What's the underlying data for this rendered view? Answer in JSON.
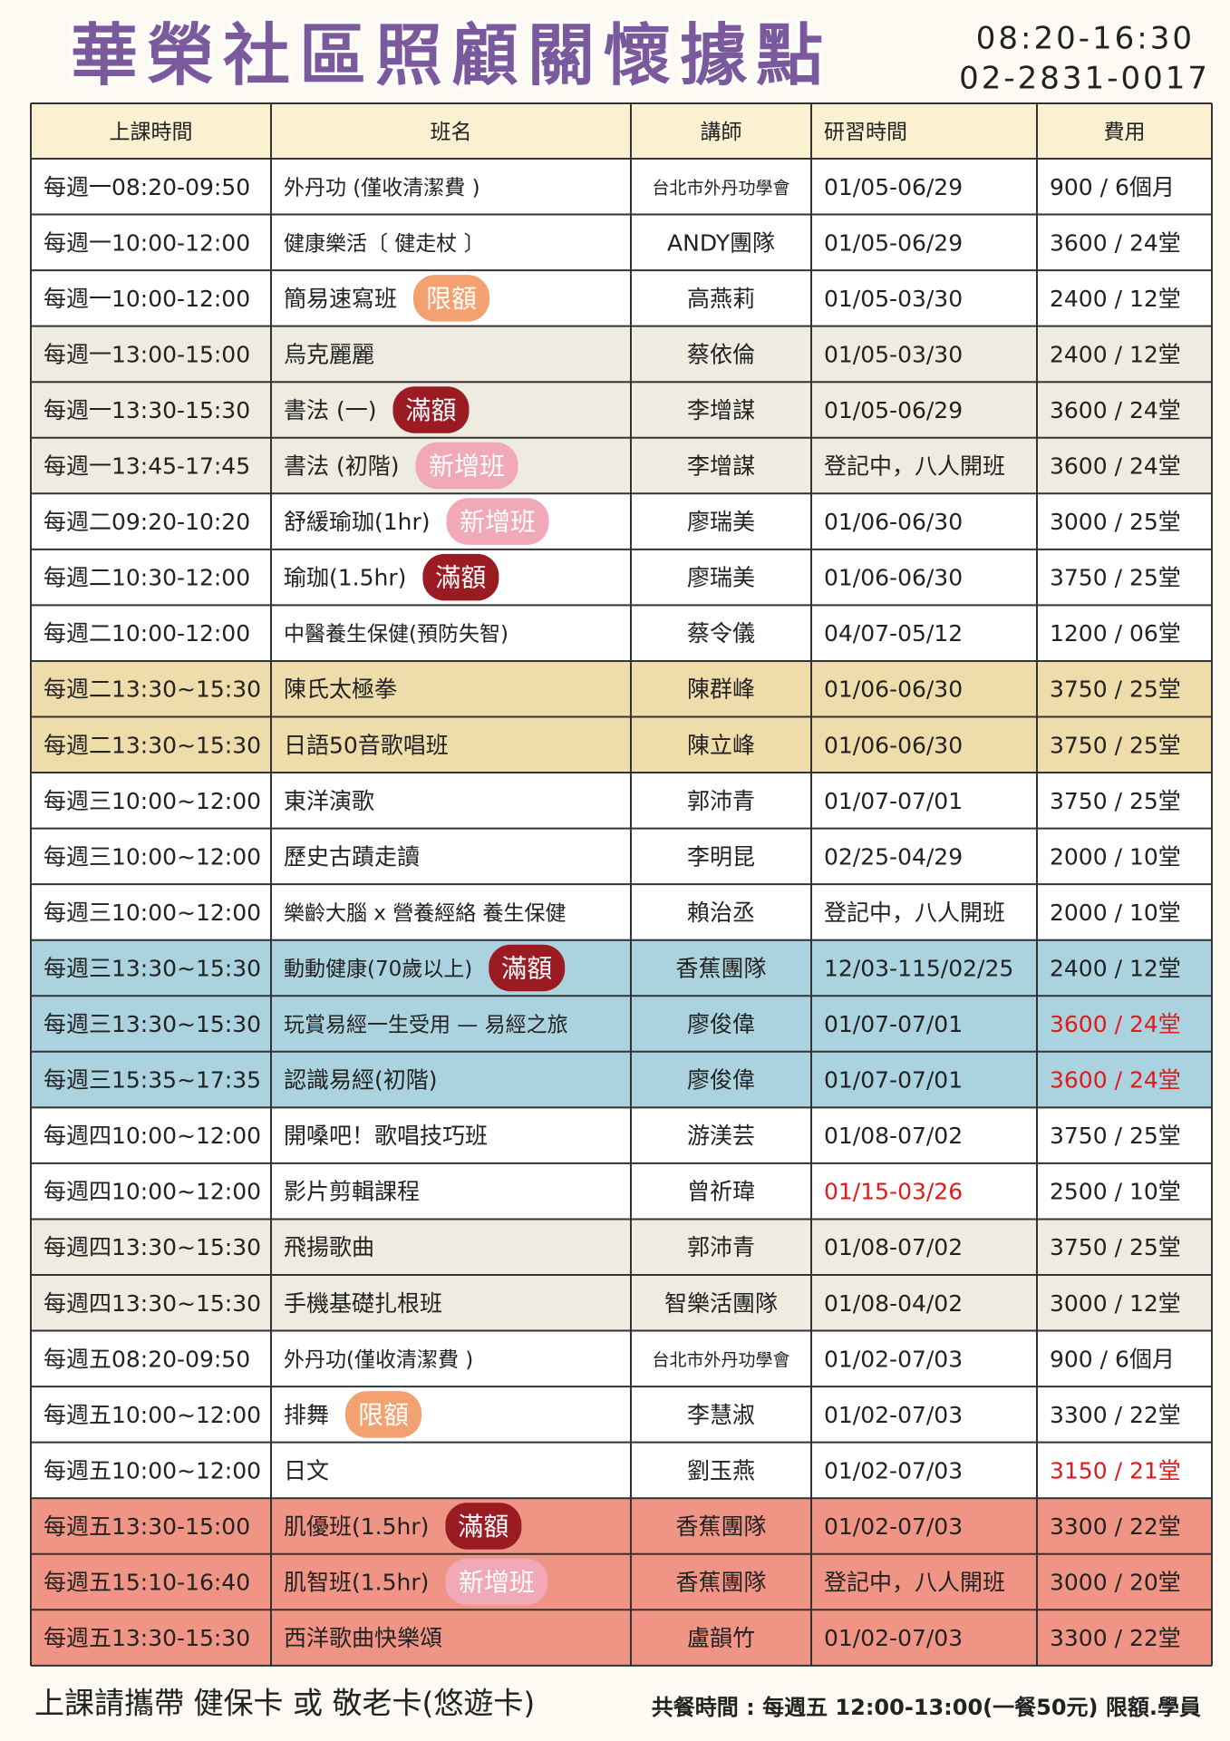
{
  "header": {
    "title": "華榮社區照顧關懷據點",
    "hours": "08:20-16:30",
    "phone": "02-2831-0017"
  },
  "table": {
    "headers": [
      "上課時間",
      "班名",
      "講師",
      "研習時間",
      "費用"
    ],
    "rows": [
      {
        "cells": [
          "每週一08:20-09:50",
          "外丹功 (僅收清潔費 )",
          "台北市外丹功學會",
          "01/05-06/29",
          "900 / 6個月"
        ],
        "bg": "#ffffff"
      },
      {
        "cells": [
          "每週一10:00-12:00",
          "健康樂活〔 健走杖 〕",
          "ANDY團隊",
          "01/05-06/29",
          "3600 / 24堂"
        ],
        "bg": "#ffffff"
      },
      {
        "cells": [
          "每週一10:00-12:00",
          "簡易速寫班",
          "高燕莉",
          "01/05-03/30",
          "2400 / 12堂"
        ],
        "bg": "#ffffff",
        "badge": {
          "text": "限額",
          "color": "#f4a172"
        }
      },
      {
        "cells": [
          "每週一13:00-15:00",
          "烏克麗麗",
          "蔡依倫",
          "01/05-03/30",
          "2400 / 12堂"
        ],
        "bg": "#eeebe0"
      },
      {
        "cells": [
          "每週一13:30-15:30",
          "書法 (一)",
          "李增謀",
          "01/05-06/29",
          "3600 / 24堂"
        ],
        "bg": "#eeebe0",
        "badge": {
          "text": "滿額",
          "color": "#9b1b22"
        }
      },
      {
        "cells": [
          "每週一13:45-17:45",
          "書法 (初階)",
          "李增謀",
          "登記中，八人開班",
          "3600 / 24堂"
        ],
        "bg": "#eeebe0",
        "badge": {
          "text": "新增班",
          "color": "#f1a9b7"
        }
      },
      {
        "cells": [
          "每週二09:20-10:20",
          "舒緩瑜珈(1hr)",
          "廖瑞美",
          "01/06-06/30",
          "3000 / 25堂"
        ],
        "bg": "#ffffff",
        "badge": {
          "text": "新增班",
          "color": "#f1a9b7"
        }
      },
      {
        "cells": [
          "每週二10:30-12:00",
          "瑜珈(1.5hr)",
          "廖瑞美",
          "01/06-06/30",
          "3750 / 25堂"
        ],
        "bg": "#ffffff",
        "badge": {
          "text": "滿額",
          "color": "#9b1b22"
        }
      },
      {
        "cells": [
          "每週二10:00-12:00",
          "中醫養生保健(預防失智)",
          "蔡令儀",
          "04/07-05/12",
          "1200 / 06堂"
        ],
        "bg": "#ffffff"
      },
      {
        "cells": [
          "每週二13:30~15:30",
          "陳氏太極拳",
          "陳群峰",
          "01/06-06/30",
          "3750 / 25堂"
        ],
        "bg": "#efdcab"
      },
      {
        "cells": [
          "每週二13:30~15:30",
          "日語50音歌唱班",
          "陳立峰",
          "01/06-06/30",
          "3750 / 25堂"
        ],
        "bg": "#efdcab"
      },
      {
        "cells": [
          "每週三10:00~12:00",
          "東洋演歌",
          "郭沛青",
          "01/07-07/01",
          "3750 / 25堂"
        ],
        "bg": "#ffffff"
      },
      {
        "cells": [
          "每週三10:00~12:00",
          "歷史古蹟走讀",
          "李明昆",
          "02/25-04/29",
          "2000 / 10堂"
        ],
        "bg": "#ffffff"
      },
      {
        "cells": [
          "每週三10:00~12:00",
          "樂齡大腦 x 營養經絡 養生保健",
          "賴治丞",
          "登記中，八人開班",
          "2000 / 10堂"
        ],
        "bg": "#ffffff"
      },
      {
        "cells": [
          "每週三13:30~15:30",
          "動動健康(70歲以上)",
          "香蕉團隊",
          "12/03-115/02/25",
          "2400 / 12堂"
        ],
        "bg": "#abd3df",
        "badge": {
          "text": "滿額",
          "color": "#9b1b22"
        }
      },
      {
        "cells": [
          "每週三13:30~15:30",
          "玩賞易經一生受用 — 易經之旅",
          "廖俊偉",
          "01/07-07/01",
          "3600 / 24堂"
        ],
        "bg": "#abd3df",
        "red": [
          4
        ]
      },
      {
        "cells": [
          "每週三15:35~17:35",
          "認識易經(初階)",
          "廖俊偉",
          "01/07-07/01",
          "3600 / 24堂"
        ],
        "bg": "#abd3df",
        "red": [
          4
        ]
      },
      {
        "cells": [
          "每週四10:00~12:00",
          "開嗓吧！歌唱技巧班",
          "游渼芸",
          "01/08-07/02",
          "3750 / 25堂"
        ],
        "bg": "#ffffff"
      },
      {
        "cells": [
          "每週四10:00~12:00",
          "影片剪輯課程",
          "曾祈瑋",
          "01/15-03/26",
          "2500 / 10堂"
        ],
        "bg": "#ffffff",
        "red": [
          3
        ]
      },
      {
        "cells": [
          "每週四13:30~15:30",
          "飛揚歌曲",
          "郭沛青",
          "01/08-07/02",
          "3750 / 25堂"
        ],
        "bg": "#eeebe0"
      },
      {
        "cells": [
          "每週四13:30~15:30",
          "手機基礎扎根班",
          "智樂活團隊",
          "01/08-04/02",
          "3000 / 12堂"
        ],
        "bg": "#eeebe0"
      },
      {
        "cells": [
          "每週五08:20-09:50",
          "外丹功(僅收清潔費 )",
          "台北市外丹功學會",
          "01/02-07/03",
          "900 / 6個月"
        ],
        "bg": "#ffffff"
      },
      {
        "cells": [
          "每週五10:00~12:00",
          "排舞",
          "李慧淑",
          "01/02-07/03",
          "3300 / 22堂"
        ],
        "bg": "#ffffff",
        "badge": {
          "text": "限額",
          "color": "#f4a172"
        }
      },
      {
        "cells": [
          "每週五10:00~12:00",
          "日文",
          "劉玉燕",
          "01/02-07/03",
          "3150 / 21堂"
        ],
        "bg": "#ffffff",
        "red": [
          4
        ]
      },
      {
        "cells": [
          "每週五13:30-15:00",
          "肌優班(1.5hr)",
          "香蕉團隊",
          "01/02-07/03",
          "3300 / 22堂"
        ],
        "bg": "#f09585",
        "badge": {
          "text": "滿額",
          "color": "#9b1b22"
        }
      },
      {
        "cells": [
          "每週五15:10-16:40",
          "肌智班(1.5hr)",
          "香蕉團隊",
          "登記中，八人開班",
          "3000 / 20堂"
        ],
        "bg": "#f09585",
        "badge": {
          "text": "新增班",
          "color": "#f1a9b7"
        }
      },
      {
        "cells": [
          "每週五13:30-15:30",
          "西洋歌曲快樂頌",
          "盧韻竹",
          "01/02-07/03",
          "3300 / 22堂"
        ],
        "bg": "#f09585"
      }
    ]
  },
  "footer": {
    "left": "上課請攜帶 健保卡 或 敬老卡(悠遊卡)",
    "right": "共餐時間 : 每週五 12:00-13:00(一餐50元) 限額.學員"
  }
}
